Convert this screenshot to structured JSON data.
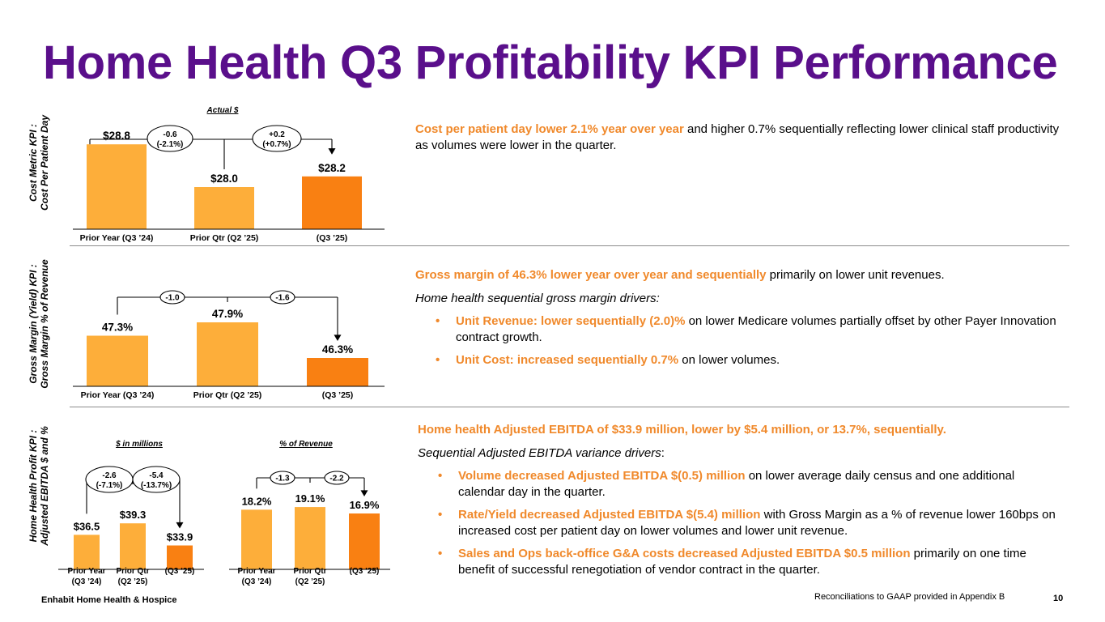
{
  "title": "Home Health Q3 Profitability KPI Performance",
  "colors": {
    "title": "#5a0f8b",
    "bar_light": "#fdae3a",
    "bar_dark": "#f98012",
    "highlight": "#f0892b"
  },
  "chart_data": [
    {
      "id": "cost",
      "type": "bar",
      "side_title": [
        "Cost Metric KPI :",
        "Cost Per Patient Day"
      ],
      "header": "Actual $",
      "categories": [
        "Prior Year (Q3 ’24)",
        "Prior Qtr (Q2 ’25)",
        "(Q3 ’25)"
      ],
      "values": [
        28.8,
        28.0,
        28.2
      ],
      "labels": [
        "$28.8",
        "$28.0",
        "$28.2"
      ],
      "bridges": [
        [
          "-0.6",
          "(-2.1%)"
        ],
        [
          "+0.2",
          "(+0.7%)"
        ]
      ]
    },
    {
      "id": "margin",
      "type": "bar",
      "side_title": [
        "Gross Margin (Yield) KPI :",
        "Gross Margin % of Revenue"
      ],
      "categories": [
        "Prior Year (Q3 ’24)",
        "Prior Qtr (Q2 ’25)",
        "(Q3 ’25)"
      ],
      "values": [
        47.3,
        47.9,
        46.3
      ],
      "labels": [
        "47.3%",
        "47.9%",
        "46.3%"
      ],
      "bridges": [
        [
          "-1.0"
        ],
        [
          "-1.6"
        ]
      ]
    },
    {
      "id": "ebitda",
      "type": "bar",
      "side_title": [
        "Home Health Profit KPI :",
        "Adjusted EBITDA $ and %"
      ],
      "header": "$ in millions",
      "categories": [
        [
          "Prior Year",
          "(Q3 ’24)"
        ],
        [
          "Prior Qtr",
          "(Q2 ’25)"
        ],
        [
          "(Q3 ’25)"
        ]
      ],
      "values": [
        36.5,
        39.3,
        33.9
      ],
      "labels": [
        "$36.5",
        "$39.3",
        "$33.9"
      ],
      "bridges": [
        [
          "-2.6",
          "(-7.1%)"
        ],
        [
          "-5.4",
          "(-13.7%)"
        ]
      ]
    },
    {
      "id": "ebitda_pct",
      "type": "bar",
      "header": "% of Revenue",
      "categories": [
        [
          "Prior Year",
          "(Q3 ’24)"
        ],
        [
          "Prior Qtr",
          "(Q2 ’25)"
        ],
        [
          "(Q3 ’25)"
        ]
      ],
      "values": [
        18.2,
        19.1,
        16.9
      ],
      "labels": [
        "18.2%",
        "19.1%",
        "16.9%"
      ],
      "bridges": [
        [
          "-1.3"
        ],
        [
          "-2.2"
        ]
      ]
    }
  ],
  "sections": {
    "cost": {
      "hl": "Cost per patient day lower 2.1% year over year",
      "rest": " and higher 0.7% sequentially reflecting lower clinical staff productivity as volumes were lower in the quarter."
    },
    "margin": {
      "hl": "Gross margin of 46.3% lower year over year and sequentially",
      "rest": " primarily on lower unit revenues.",
      "sub": "Home health sequential gross margin drivers:",
      "bullets": [
        {
          "hl": "Unit Revenue: lower sequentially (2.0)%",
          "rest": " on lower Medicare volumes partially offset by other Payer Innovation contract growth."
        },
        {
          "hl": "Unit Cost: increased sequentially 0.7%",
          "rest": " on lower volumes."
        }
      ]
    },
    "ebitda": {
      "hl": "Home health Adjusted EBITDA of $33.9 million, lower by $5.4 million, or 13.7%, sequentially.",
      "sub": "Sequential Adjusted EBITDA variance drivers",
      "sub_colon": ":",
      "bullets": [
        {
          "hl": "Volume decreased Adjusted EBITDA $(0.5) million",
          "rest": " on lower average daily census and one additional calendar day in the quarter."
        },
        {
          "hl": "Rate/Yield decreased Adjusted EBITDA $(5.4) million",
          "rest": " with Gross Margin as a % of revenue lower 160bps on increased cost per patient day on lower volumes and lower unit revenue."
        },
        {
          "hl": "Sales and Ops back-office G&A costs decreased Adjusted EBITDA $0.5 million",
          "rest": " primarily on one time benefit of successful renegotiation of vendor contract in the quarter."
        }
      ]
    }
  },
  "bullet_char": "•",
  "footer": {
    "left": "Enhabit Home Health & Hospice",
    "note": "Reconciliations to GAAP provided in Appendix B",
    "page": "10"
  }
}
